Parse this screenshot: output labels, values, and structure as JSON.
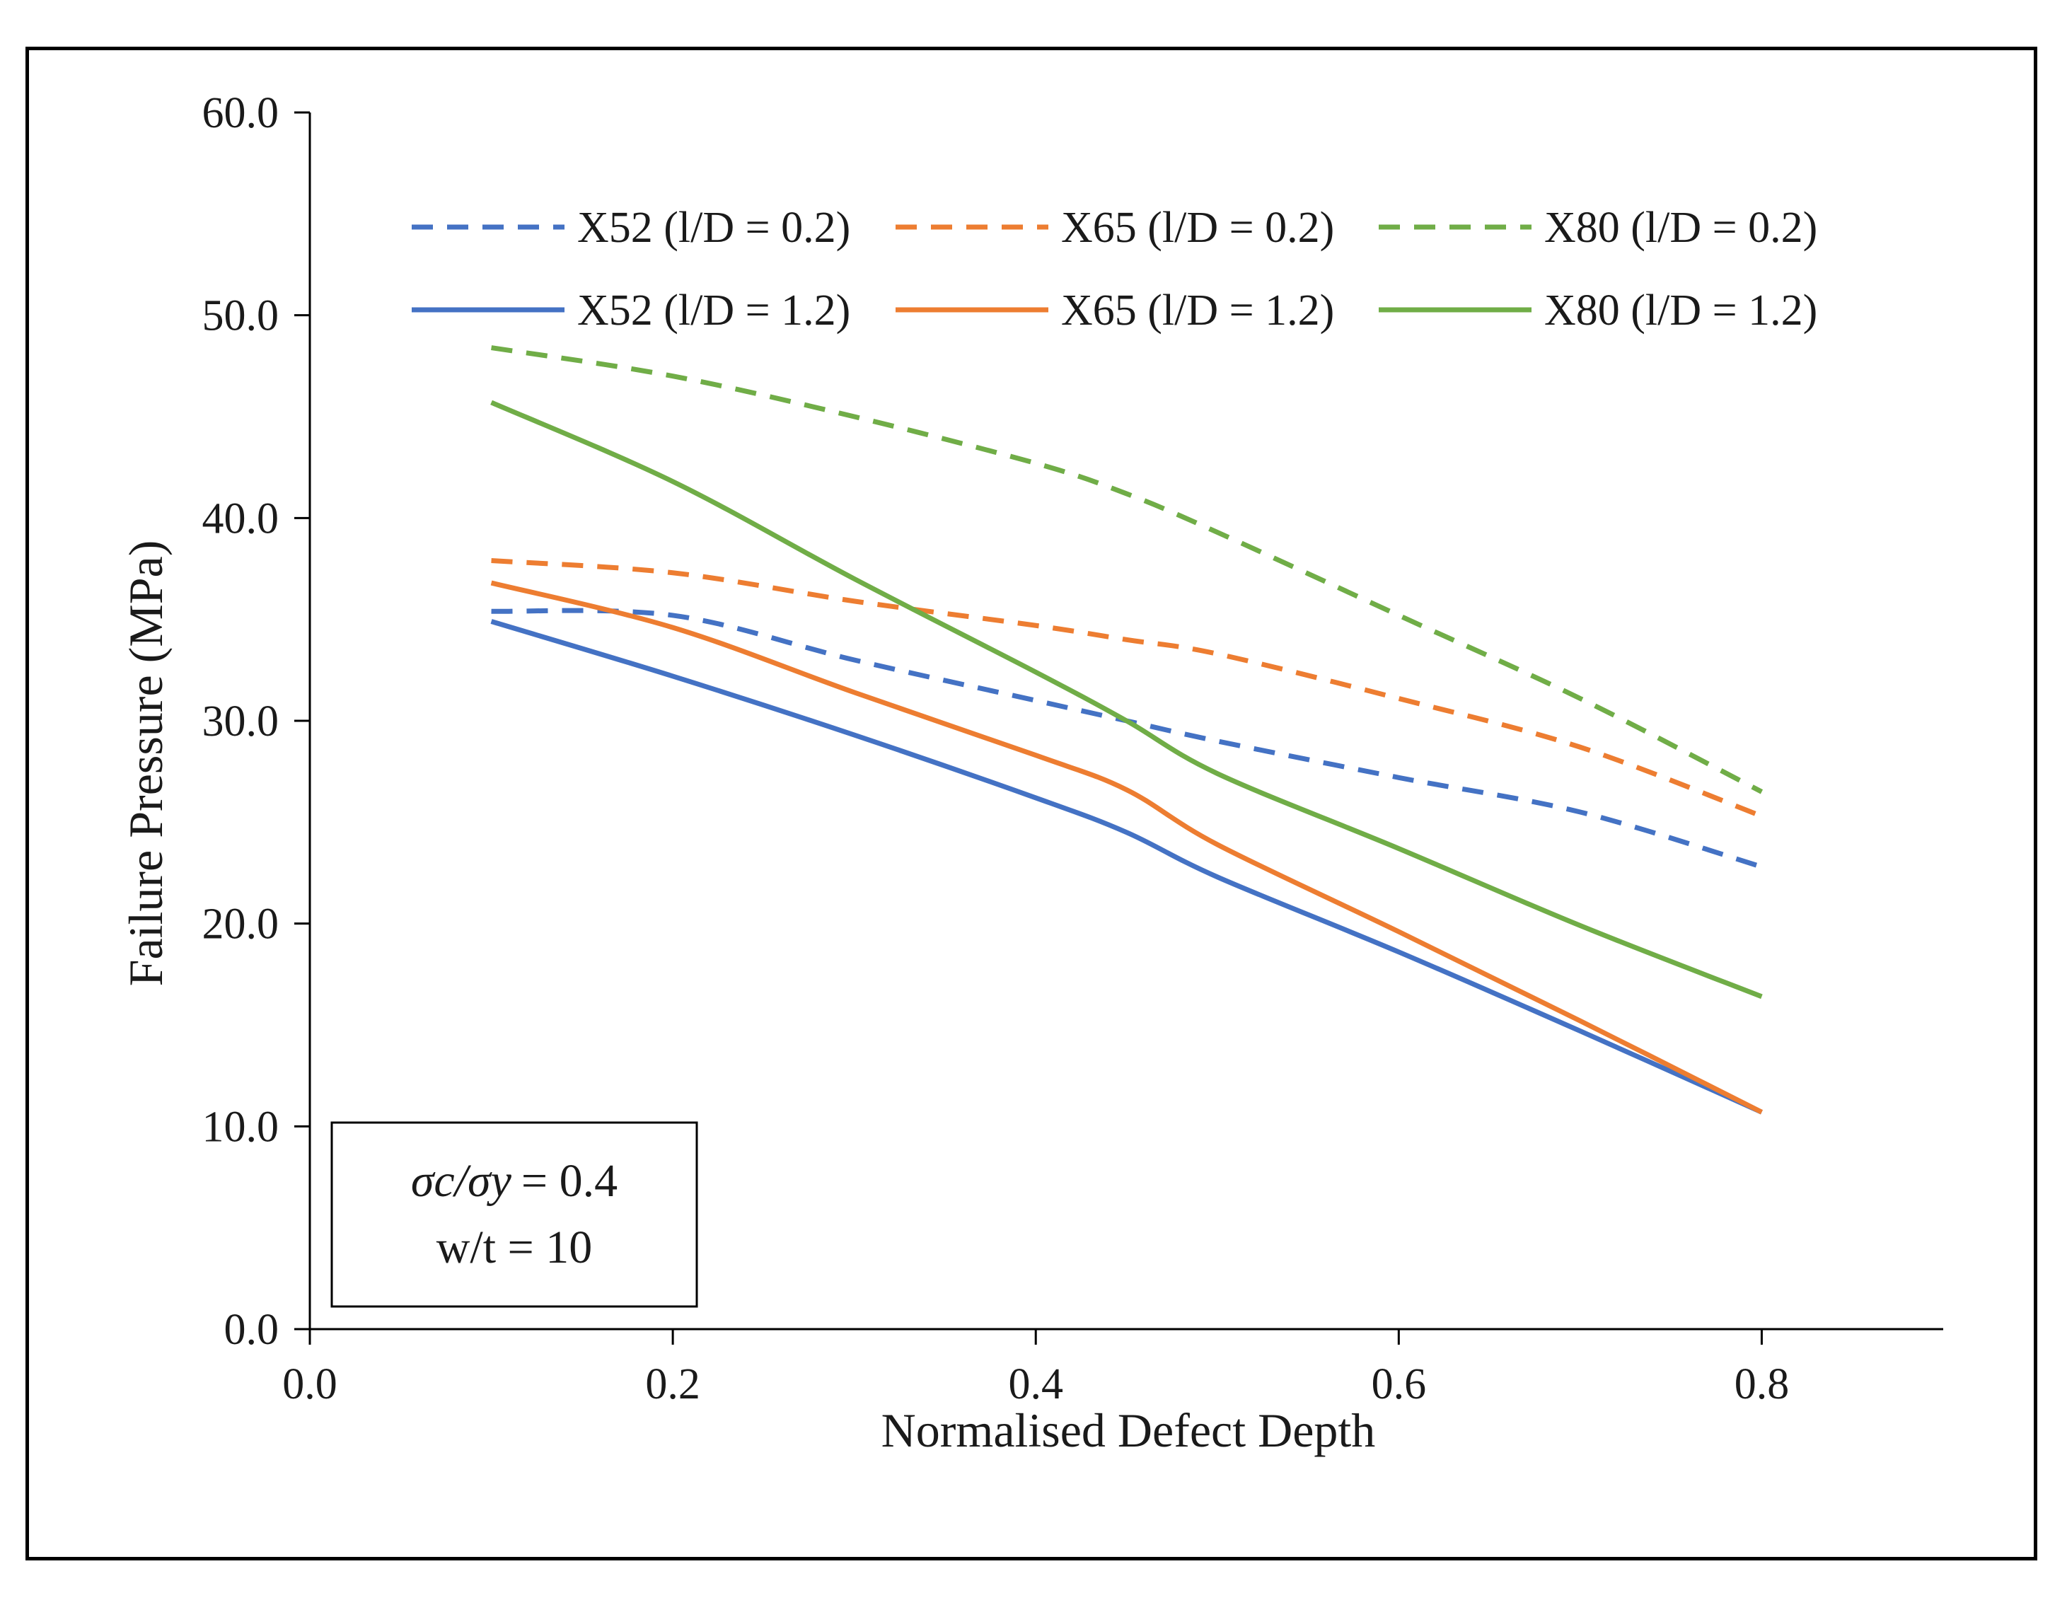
{
  "chart_data": {
    "type": "line",
    "xlabel": "Normalised Defect Depth",
    "ylabel": "Failure Pressure (MPa)",
    "xlim": [
      0.0,
      0.9
    ],
    "ylim": [
      0.0,
      60.0
    ],
    "xticks": [
      "0.0",
      "0.2",
      "0.4",
      "0.6",
      "0.8"
    ],
    "yticks": [
      "0.0",
      "10.0",
      "20.0",
      "30.0",
      "40.0",
      "50.0",
      "60.0"
    ],
    "grid": false,
    "legend_position": "top",
    "series": [
      {
        "name": "X52 (l/D = 0.2)",
        "color": "#4472c4",
        "style": "dashed",
        "x": [
          0.1,
          0.2,
          0.3,
          0.4,
          0.45,
          0.5,
          0.6,
          0.7,
          0.8
        ],
        "y": [
          35.4,
          35.2,
          33.0,
          31.0,
          30.0,
          29.0,
          27.2,
          25.5,
          22.8
        ]
      },
      {
        "name": "X65 (l/D = 0.2)",
        "color": "#ed7d31",
        "style": "dashed",
        "x": [
          0.1,
          0.2,
          0.3,
          0.4,
          0.45,
          0.5,
          0.6,
          0.7,
          0.8
        ],
        "y": [
          37.9,
          37.3,
          35.9,
          34.7,
          34.0,
          33.3,
          31.1,
          28.7,
          25.3
        ]
      },
      {
        "name": "X80 (l/D = 0.2)",
        "color": "#70ad47",
        "style": "dashed",
        "x": [
          0.1,
          0.2,
          0.3,
          0.4,
          0.45,
          0.5,
          0.6,
          0.7,
          0.8
        ],
        "y": [
          48.4,
          47.0,
          45.0,
          42.7,
          41.2,
          39.3,
          35.2,
          31.1,
          26.5
        ]
      },
      {
        "name": "X52 (l/D = 1.2)",
        "color": "#4472c4",
        "style": "solid",
        "x": [
          0.1,
          0.2,
          0.3,
          0.4,
          0.45,
          0.5,
          0.6,
          0.7,
          0.8
        ],
        "y": [
          34.9,
          32.2,
          29.3,
          26.2,
          24.5,
          22.3,
          18.6,
          14.7,
          10.7
        ]
      },
      {
        "name": "X65 (l/D = 1.2)",
        "color": "#ed7d31",
        "style": "solid",
        "x": [
          0.1,
          0.2,
          0.3,
          0.4,
          0.45,
          0.5,
          0.6,
          0.7,
          0.8
        ],
        "y": [
          36.8,
          34.6,
          31.4,
          28.3,
          26.6,
          23.9,
          19.6,
          15.2,
          10.7
        ]
      },
      {
        "name": "X80 (l/D = 1.2)",
        "color": "#70ad47",
        "style": "solid",
        "x": [
          0.1,
          0.2,
          0.3,
          0.4,
          0.45,
          0.5,
          0.6,
          0.7,
          0.8
        ],
        "y": [
          45.7,
          41.8,
          37.0,
          32.4,
          30.0,
          27.4,
          23.7,
          19.9,
          16.4
        ]
      }
    ],
    "annotation": {
      "line1_lhs": "σc/σy",
      "line1_rhs": "= 0.4",
      "line2": "w/t = 10"
    }
  }
}
